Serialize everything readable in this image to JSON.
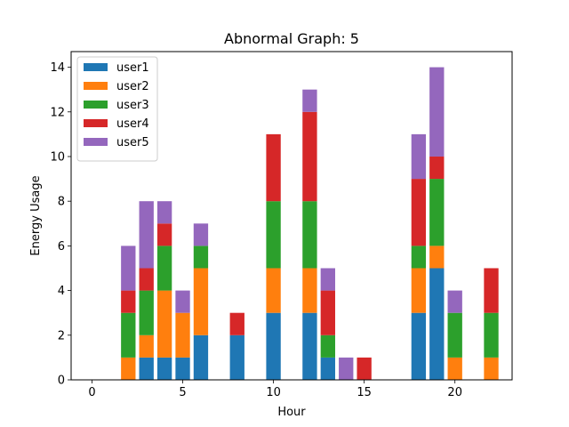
{
  "chart_data": {
    "type": "bar",
    "stacked": true,
    "title": "Abnormal Graph: 5",
    "xlabel": "Hour",
    "ylabel": "Energy Usage",
    "xlim": [
      -1.15,
      23.15
    ],
    "ylim": [
      0,
      14.7
    ],
    "xticks": [
      0,
      5,
      10,
      15,
      20
    ],
    "yticks": [
      0,
      2,
      4,
      6,
      8,
      10,
      12,
      14
    ],
    "grid": false,
    "legend_position": "top-left",
    "x": [
      0,
      1,
      2,
      3,
      4,
      5,
      6,
      7,
      8,
      9,
      10,
      11,
      12,
      13,
      14,
      15,
      16,
      17,
      18,
      19,
      20,
      21,
      22,
      23
    ],
    "series": [
      {
        "name": "user1",
        "color": "#1f77b4",
        "values": [
          0,
          0,
          0,
          1,
          1,
          1,
          2,
          0,
          2,
          0,
          3,
          0,
          3,
          1,
          0,
          0,
          0,
          0,
          3,
          5,
          0,
          0,
          0,
          0
        ]
      },
      {
        "name": "user2",
        "color": "#ff7f0e",
        "values": [
          0,
          0,
          1,
          1,
          3,
          2,
          3,
          0,
          0,
          0,
          2,
          0,
          2,
          0,
          0,
          0,
          0,
          0,
          2,
          1,
          1,
          0,
          1,
          0
        ]
      },
      {
        "name": "user3",
        "color": "#2ca02c",
        "values": [
          0,
          0,
          2,
          2,
          2,
          0,
          1,
          0,
          0,
          0,
          3,
          0,
          3,
          1,
          0,
          0,
          0,
          0,
          1,
          3,
          2,
          0,
          2,
          0
        ]
      },
      {
        "name": "user4",
        "color": "#d62728",
        "values": [
          0,
          0,
          1,
          1,
          1,
          0,
          0,
          0,
          1,
          0,
          3,
          0,
          4,
          2,
          0,
          1,
          0,
          0,
          3,
          1,
          0,
          0,
          2,
          0
        ]
      },
      {
        "name": "user5",
        "color": "#9467bd",
        "values": [
          0,
          0,
          2,
          3,
          1,
          1,
          1,
          0,
          0,
          0,
          0,
          0,
          1,
          1,
          1,
          0,
          0,
          0,
          2,
          4,
          1,
          0,
          0,
          0
        ]
      }
    ]
  }
}
